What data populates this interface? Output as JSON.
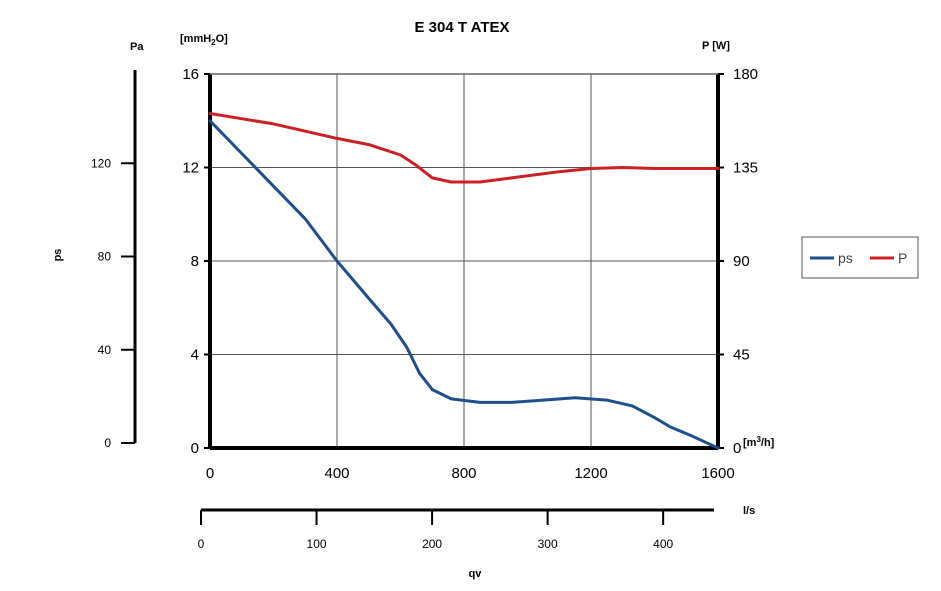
{
  "chart_data": {
    "type": "line",
    "title": "E 304 T ATEX",
    "x": {
      "unit": "[m³/h]",
      "range": [
        0,
        1600
      ],
      "ticks": [
        "0",
        "400",
        "800",
        "1200",
        "1600"
      ]
    },
    "y_left": {
      "unit": "[mmH2O]",
      "range": [
        0,
        16
      ],
      "ticks": [
        "0",
        "4",
        "8",
        "12",
        "16"
      ]
    },
    "y_right": {
      "unit": "P [W]",
      "range": [
        0,
        180
      ],
      "ticks": [
        "0",
        "45",
        "90",
        "135",
        "180"
      ]
    },
    "y_pa": {
      "unit": "Pa",
      "label": "ps",
      "range": [
        0,
        160
      ],
      "ticks": [
        "0",
        "40",
        "80",
        "120"
      ]
    },
    "x_ls": {
      "unit": "l/s",
      "label": "qv",
      "range": [
        0,
        444
      ],
      "ticks": [
        "0",
        "100",
        "200",
        "300",
        "400"
      ]
    },
    "grid": true,
    "legend_position": "right",
    "series": [
      {
        "name": "ps",
        "axis": "left",
        "color": "#1f4e8c",
        "points": [
          [
            0,
            14.0
          ],
          [
            100,
            12.6
          ],
          [
            200,
            11.2
          ],
          [
            300,
            9.8
          ],
          [
            400,
            8.0
          ],
          [
            500,
            6.4
          ],
          [
            570,
            5.3
          ],
          [
            620,
            4.3
          ],
          [
            660,
            3.2
          ],
          [
            700,
            2.5
          ],
          [
            760,
            2.1
          ],
          [
            850,
            1.95
          ],
          [
            950,
            1.95
          ],
          [
            1050,
            2.05
          ],
          [
            1150,
            2.15
          ],
          [
            1250,
            2.05
          ],
          [
            1330,
            1.8
          ],
          [
            1400,
            1.3
          ],
          [
            1450,
            0.9
          ],
          [
            1520,
            0.5
          ],
          [
            1600,
            0.0
          ]
        ]
      },
      {
        "name": "P",
        "axis": "right",
        "color": "#cc2027",
        "points": [
          [
            0,
            161
          ],
          [
            200,
            156
          ],
          [
            400,
            149
          ],
          [
            500,
            146
          ],
          [
            600,
            141
          ],
          [
            650,
            136
          ],
          [
            700,
            130
          ],
          [
            760,
            128
          ],
          [
            850,
            128
          ],
          [
            950,
            130
          ],
          [
            1100,
            133
          ],
          [
            1200,
            134.5
          ],
          [
            1300,
            135
          ],
          [
            1400,
            134.5
          ],
          [
            1500,
            134.5
          ],
          [
            1600,
            134.5
          ]
        ]
      }
    ]
  }
}
